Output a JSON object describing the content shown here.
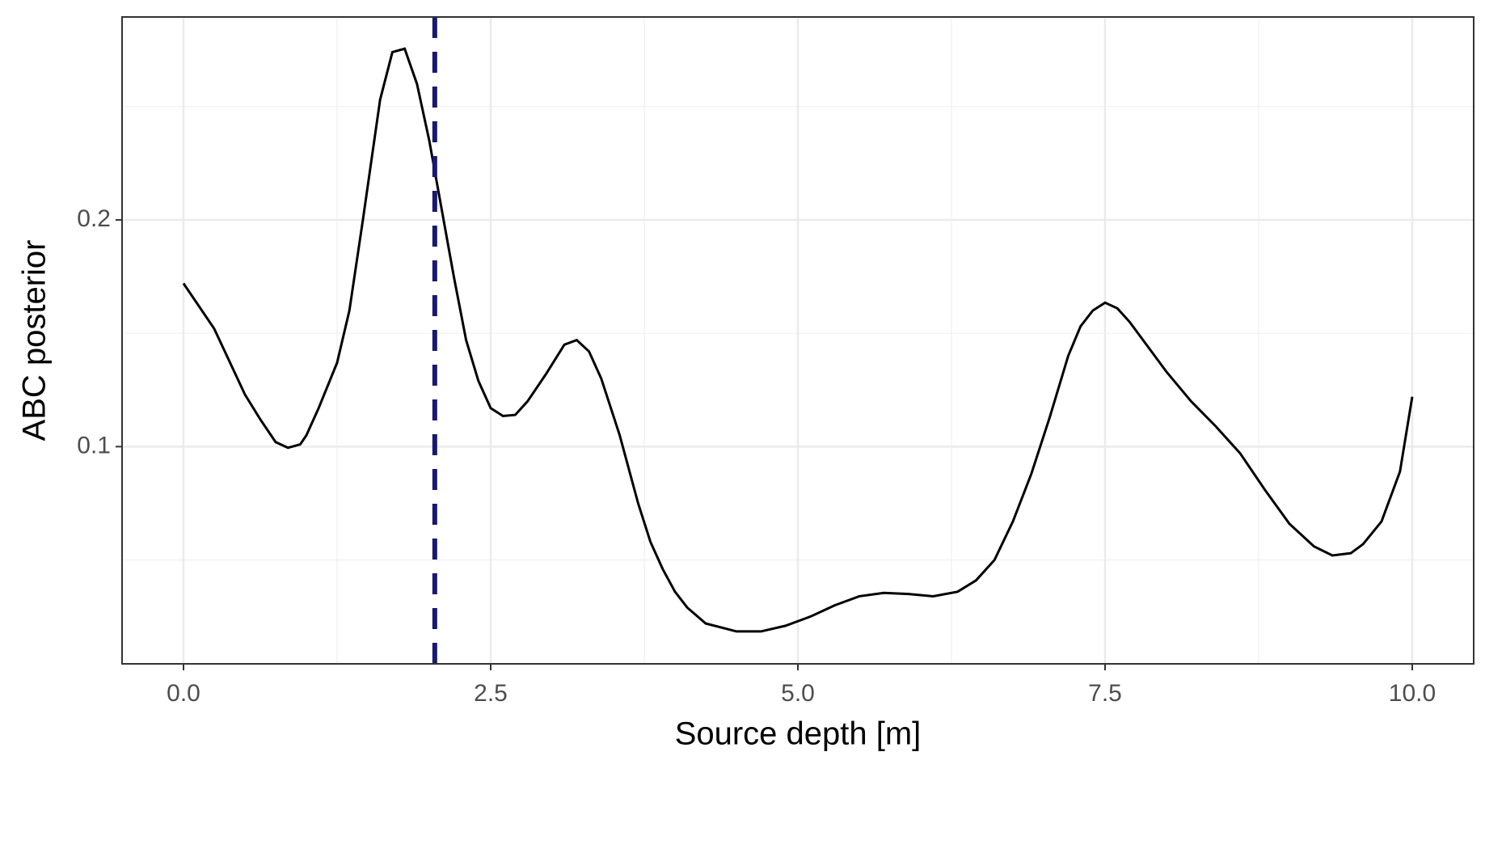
{
  "chart_data": {
    "type": "line",
    "x_label": "Source depth [m]",
    "y_label": "ABC posterior",
    "x": [
      0,
      0.25,
      0.5,
      0.625,
      0.75,
      0.85,
      0.95,
      1.0,
      1.1,
      1.25,
      1.35,
      1.46,
      1.6,
      1.7,
      1.8,
      1.9,
      2.0,
      2.1,
      2.2,
      2.3,
      2.4,
      2.5,
      2.6,
      2.7,
      2.8,
      2.95,
      3.1,
      3.2,
      3.3,
      3.4,
      3.55,
      3.7,
      3.8,
      3.9,
      4.0,
      4.1,
      4.25,
      4.5,
      4.7,
      4.9,
      5.1,
      5.3,
      5.5,
      5.7,
      5.9,
      6.1,
      6.3,
      6.45,
      6.6,
      6.75,
      6.9,
      7.05,
      7.2,
      7.3,
      7.4,
      7.5,
      7.6,
      7.7,
      7.85,
      8.0,
      8.2,
      8.4,
      8.6,
      8.8,
      9.0,
      9.2,
      9.35,
      9.5,
      9.6,
      9.75,
      9.9,
      10.0
    ],
    "series": [
      {
        "name": "posterior",
        "color": "#000000",
        "values": [
          0.172,
          0.152,
          0.123,
          0.112,
          0.102,
          0.0995,
          0.101,
          0.105,
          0.117,
          0.137,
          0.16,
          0.2,
          0.253,
          0.274,
          0.2755,
          0.26,
          0.235,
          0.205,
          0.175,
          0.147,
          0.129,
          0.117,
          0.1135,
          0.114,
          0.12,
          0.132,
          0.145,
          0.147,
          0.142,
          0.13,
          0.105,
          0.075,
          0.058,
          0.046,
          0.036,
          0.029,
          0.022,
          0.0185,
          0.0185,
          0.021,
          0.025,
          0.03,
          0.034,
          0.0355,
          0.035,
          0.034,
          0.036,
          0.041,
          0.05,
          0.067,
          0.088,
          0.113,
          0.14,
          0.153,
          0.16,
          0.1635,
          0.161,
          0.155,
          0.144,
          0.133,
          0.12,
          0.109,
          0.097,
          0.081,
          0.066,
          0.056,
          0.052,
          0.053,
          0.057,
          0.067,
          0.089,
          0.122
        ]
      }
    ],
    "vline": {
      "x": 2.045,
      "color": "#191970"
    },
    "xlim": [
      -0.5,
      10.5
    ],
    "ylim": [
      0.0042,
      0.2895
    ],
    "xticks": [
      {
        "value": 0,
        "label": "0.0"
      },
      2.5,
      {
        "value": 5,
        "label": "5.0"
      },
      7.5,
      {
        "value": 10,
        "label": "10.0"
      }
    ],
    "yticks": [
      0.1,
      0.2
    ],
    "x_minor_grid": [
      1.25,
      3.75,
      6.25,
      8.75
    ],
    "y_minor_grid": [
      0.05,
      0.15,
      0.25
    ],
    "grid": true
  }
}
